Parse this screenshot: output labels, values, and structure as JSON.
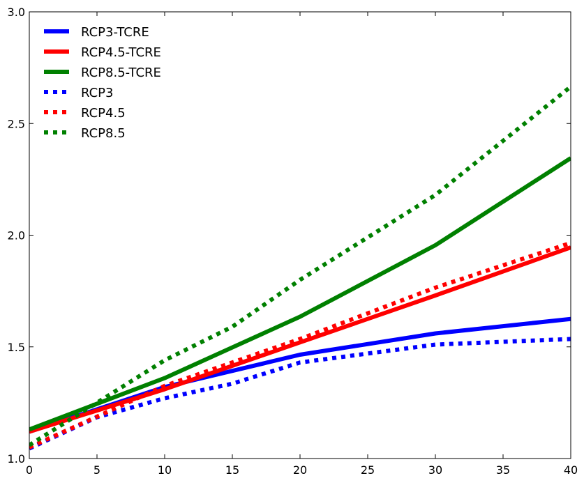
{
  "chart_data": {
    "type": "line",
    "title": "",
    "xlabel": "",
    "ylabel": "",
    "xlim": [
      0,
      40
    ],
    "ylim": [
      1.0,
      3.0
    ],
    "x_ticks": [
      "0",
      "5",
      "10",
      "15",
      "20",
      "25",
      "30",
      "35",
      "40"
    ],
    "y_ticks": [
      "1.0",
      "1.5",
      "2.0",
      "2.5",
      "3.0"
    ],
    "grid": false,
    "legend_position": "top-left",
    "series": [
      {
        "name": "RCP3-TCRE",
        "color": "#0000ff",
        "style": "solid",
        "x": [
          0,
          10,
          20,
          30,
          40
        ],
        "y": [
          1.12,
          1.32,
          1.465,
          1.56,
          1.625
        ]
      },
      {
        "name": "RCP4.5-TCRE",
        "color": "#ff0000",
        "style": "solid",
        "x": [
          0,
          10,
          20,
          30,
          40
        ],
        "y": [
          1.12,
          1.31,
          1.52,
          1.73,
          1.945
        ]
      },
      {
        "name": "RCP8.5-TCRE",
        "color": "#008000",
        "style": "solid",
        "x": [
          0,
          10,
          20,
          30,
          40
        ],
        "y": [
          1.13,
          1.36,
          1.635,
          1.955,
          2.345
        ]
      },
      {
        "name": "RCP3",
        "color": "#0000ff",
        "style": "dotted",
        "x": [
          0,
          5,
          10,
          15,
          20,
          30,
          40
        ],
        "y": [
          1.045,
          1.185,
          1.27,
          1.335,
          1.43,
          1.51,
          1.535
        ]
      },
      {
        "name": "RCP4.5",
        "color": "#ff0000",
        "style": "dotted",
        "x": [
          0,
          10,
          20,
          30,
          40
        ],
        "y": [
          1.05,
          1.325,
          1.535,
          1.765,
          1.965
        ]
      },
      {
        "name": "RCP8.5",
        "color": "#008000",
        "style": "dotted",
        "x": [
          0,
          10,
          15,
          20,
          30,
          40
        ],
        "y": [
          1.06,
          1.44,
          1.59,
          1.8,
          2.18,
          2.665
        ]
      }
    ]
  }
}
